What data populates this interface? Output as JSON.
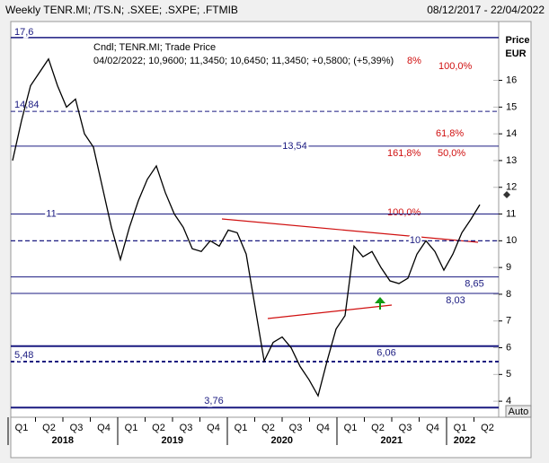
{
  "chart_data": {
    "type": "line",
    "title": "Weekly TENR.MI; /TS.N; .SXEE; .SXPE; .FTMIB",
    "date_range": "08/12/2017 - 22/04/2022",
    "legend_line1": "Cndl; TENR.MI; Trade Price",
    "legend_line2": "04/02/2022; 10,9600; 11,3450; 10,6450; 11,3450; +0,5800; (+5,39%)",
    "legend_tail": "8%",
    "y_axis_title_1": "Price",
    "y_axis_title_2": "EUR",
    "auto_label": "Auto",
    "quarters": [
      "Q1",
      "Q2",
      "Q3",
      "Q4",
      "Q1",
      "Q2",
      "Q3",
      "Q4",
      "Q1",
      "Q2",
      "Q3",
      "Q4",
      "Q1",
      "Q2",
      "Q3",
      "Q4",
      "Q1",
      "Q2"
    ],
    "years": [
      "2018",
      "2019",
      "2020",
      "2021",
      "2022"
    ],
    "ylim": [
      3.4,
      18.2
    ],
    "yticks": [
      4,
      5,
      6,
      7,
      8,
      9,
      10,
      11,
      12,
      13,
      14,
      15,
      16
    ],
    "series": [
      {
        "name": "TENR.MI",
        "color": "#000000",
        "values": [
          13.0,
          14.5,
          15.8,
          16.3,
          16.8,
          15.8,
          15.0,
          15.3,
          14.0,
          13.5,
          12.0,
          10.5,
          9.3,
          10.5,
          11.5,
          12.3,
          12.8,
          11.8,
          11.0,
          10.5,
          9.7,
          9.6,
          10.0,
          9.8,
          10.4,
          10.3,
          9.5,
          7.5,
          5.5,
          6.2,
          6.4,
          6.0,
          5.3,
          4.8,
          4.2,
          5.5,
          6.7,
          7.2,
          9.8,
          9.4,
          9.6,
          9.0,
          8.5,
          8.4,
          8.6,
          9.5,
          10.0,
          9.6,
          8.9,
          9.5,
          10.3,
          10.8,
          11.35
        ]
      }
    ],
    "levels": [
      {
        "value": 17.6,
        "label": "17,6"
      },
      {
        "value": 14.84,
        "label": "14,84"
      },
      {
        "value": 13.54,
        "label": "13,54"
      },
      {
        "value": 11,
        "label": "11"
      },
      {
        "value": 10,
        "label": "10"
      },
      {
        "value": 8.65,
        "label": "8,65"
      },
      {
        "value": 8.03,
        "label": "8,03"
      },
      {
        "value": 6.06,
        "label": "6,06"
      },
      {
        "value": 5.48,
        "label": "5,48"
      },
      {
        "value": 3.76,
        "label": "3,76"
      }
    ],
    "fib_labels": [
      "100,0%",
      "61,8%",
      "50,0%",
      "161,8%",
      "100,0%"
    ]
  }
}
